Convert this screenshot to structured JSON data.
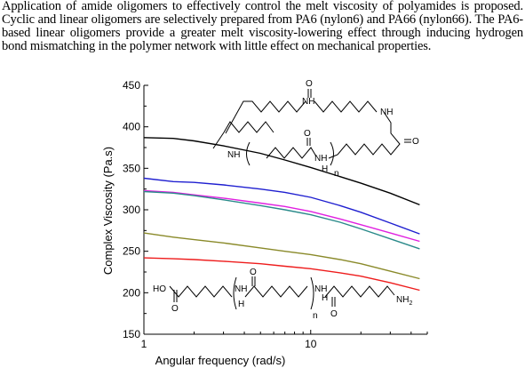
{
  "abstract": "Application of amide oligomers to effectively control the melt viscosity of polyamides is proposed. Cyclic and linear oligomers are selectively prepared from PA6 (nylon6) and PA66 (nylon66). The PA6-based linear oligomers provide a greater melt viscosity-lowering effect through inducing hydrogen bond mismatching in the polymer network with little effect on mechanical properties.",
  "chart_data": {
    "type": "line",
    "title": "",
    "xlabel": "Angular frequency (rad/s)",
    "ylabel": "Complex Viscosity (Pa.s)",
    "xscale": "log",
    "xlim": [
      1,
      50
    ],
    "ylim": [
      150,
      450
    ],
    "xticks": [
      1,
      10
    ],
    "xtick_labels": [
      "1",
      "10"
    ],
    "yticks": [
      150,
      200,
      250,
      300,
      350,
      400,
      450
    ],
    "ytick_labels": [
      "150",
      "200",
      "250",
      "300",
      "350",
      "400",
      "450"
    ],
    "grid": false,
    "series": [
      {
        "color": "#000000",
        "x": [
          1,
          1.5,
          2,
          3,
          5,
          7,
          10,
          15,
          20,
          30,
          45
        ],
        "y": [
          387,
          386,
          383,
          377,
          368,
          360,
          351,
          340,
          332,
          320,
          306
        ]
      },
      {
        "color": "#1f1fd0",
        "x": [
          1,
          1.5,
          2,
          3,
          5,
          7,
          10,
          15,
          20,
          30,
          45
        ],
        "y": [
          338,
          334,
          333,
          330,
          325,
          321,
          315,
          305,
          297,
          284,
          271
        ]
      },
      {
        "color": "#e020e0",
        "x": [
          1,
          1.5,
          2,
          3,
          5,
          7,
          10,
          15,
          20,
          30,
          45
        ],
        "y": [
          323,
          321,
          318,
          314,
          308,
          304,
          298,
          289,
          282,
          272,
          262
        ]
      },
      {
        "color": "#2a8a8a",
        "x": [
          1,
          1.5,
          2,
          3,
          5,
          7,
          10,
          15,
          20,
          30,
          45
        ],
        "y": [
          322,
          320,
          317,
          312,
          305,
          300,
          294,
          285,
          277,
          265,
          253
        ]
      },
      {
        "color": "#8a8a2a",
        "x": [
          1,
          1.5,
          2,
          3,
          5,
          7,
          10,
          15,
          20,
          30,
          45
        ],
        "y": [
          272,
          267,
          264,
          260,
          254,
          250,
          246,
          240,
          235,
          226,
          217
        ]
      },
      {
        "color": "#ee1c1c",
        "x": [
          1,
          1.5,
          2,
          3,
          5,
          7,
          10,
          15,
          20,
          30,
          45
        ],
        "y": [
          242,
          241,
          240,
          238,
          235,
          232,
          229,
          224,
          220,
          212,
          203
        ]
      }
    ]
  },
  "structures": {
    "cyclic": {
      "o": "O",
      "nh1": "NH",
      "nh2": "NH",
      "h": "H",
      "n": "n"
    },
    "linear": {
      "ho": "HO",
      "o": "O",
      "n_sub": "n",
      "nh": "NH",
      "h": "H",
      "nh2": "NH",
      "nh2_sub": "2"
    }
  }
}
